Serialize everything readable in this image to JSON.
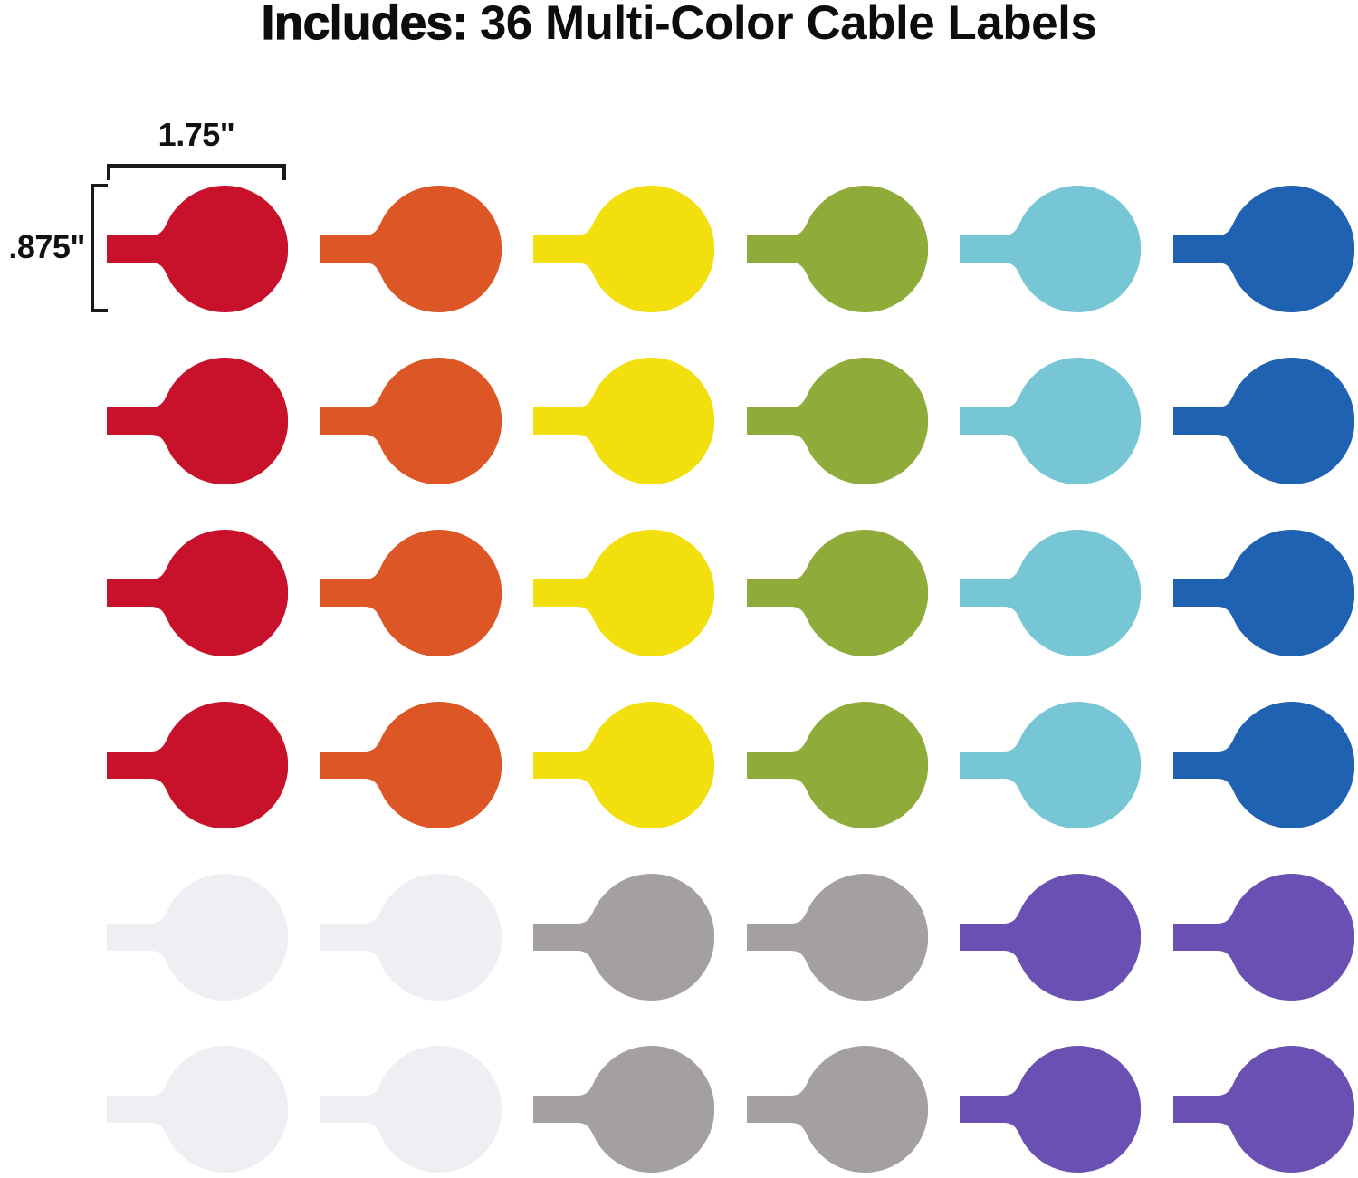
{
  "title": {
    "bold_prefix": "Includes:",
    "text": "36 Multi-Color Cable Labels"
  },
  "annotations": {
    "width_dimension": "1.75\"",
    "height_dimension": ".875\""
  },
  "palette": {
    "red": "#C8112B",
    "orange": "#DD5626",
    "yellow": "#F2DF0D",
    "green": "#8FAC3B",
    "cyan": "#77C6D6",
    "blue": "#1F62B2",
    "white": "#EDEFF2",
    "gray": "#A49FA2",
    "purple": "#6A50B2"
  },
  "grid": {
    "rows": [
      [
        "red",
        "orange",
        "yellow",
        "green",
        "cyan",
        "blue"
      ],
      [
        "red",
        "orange",
        "yellow",
        "green",
        "cyan",
        "blue"
      ],
      [
        "red",
        "orange",
        "yellow",
        "green",
        "cyan",
        "blue"
      ],
      [
        "red",
        "orange",
        "yellow",
        "green",
        "cyan",
        "blue"
      ],
      [
        "white",
        "white",
        "gray",
        "gray",
        "purple",
        "purple"
      ],
      [
        "white",
        "white",
        "gray",
        "gray",
        "purple",
        "purple"
      ]
    ]
  }
}
